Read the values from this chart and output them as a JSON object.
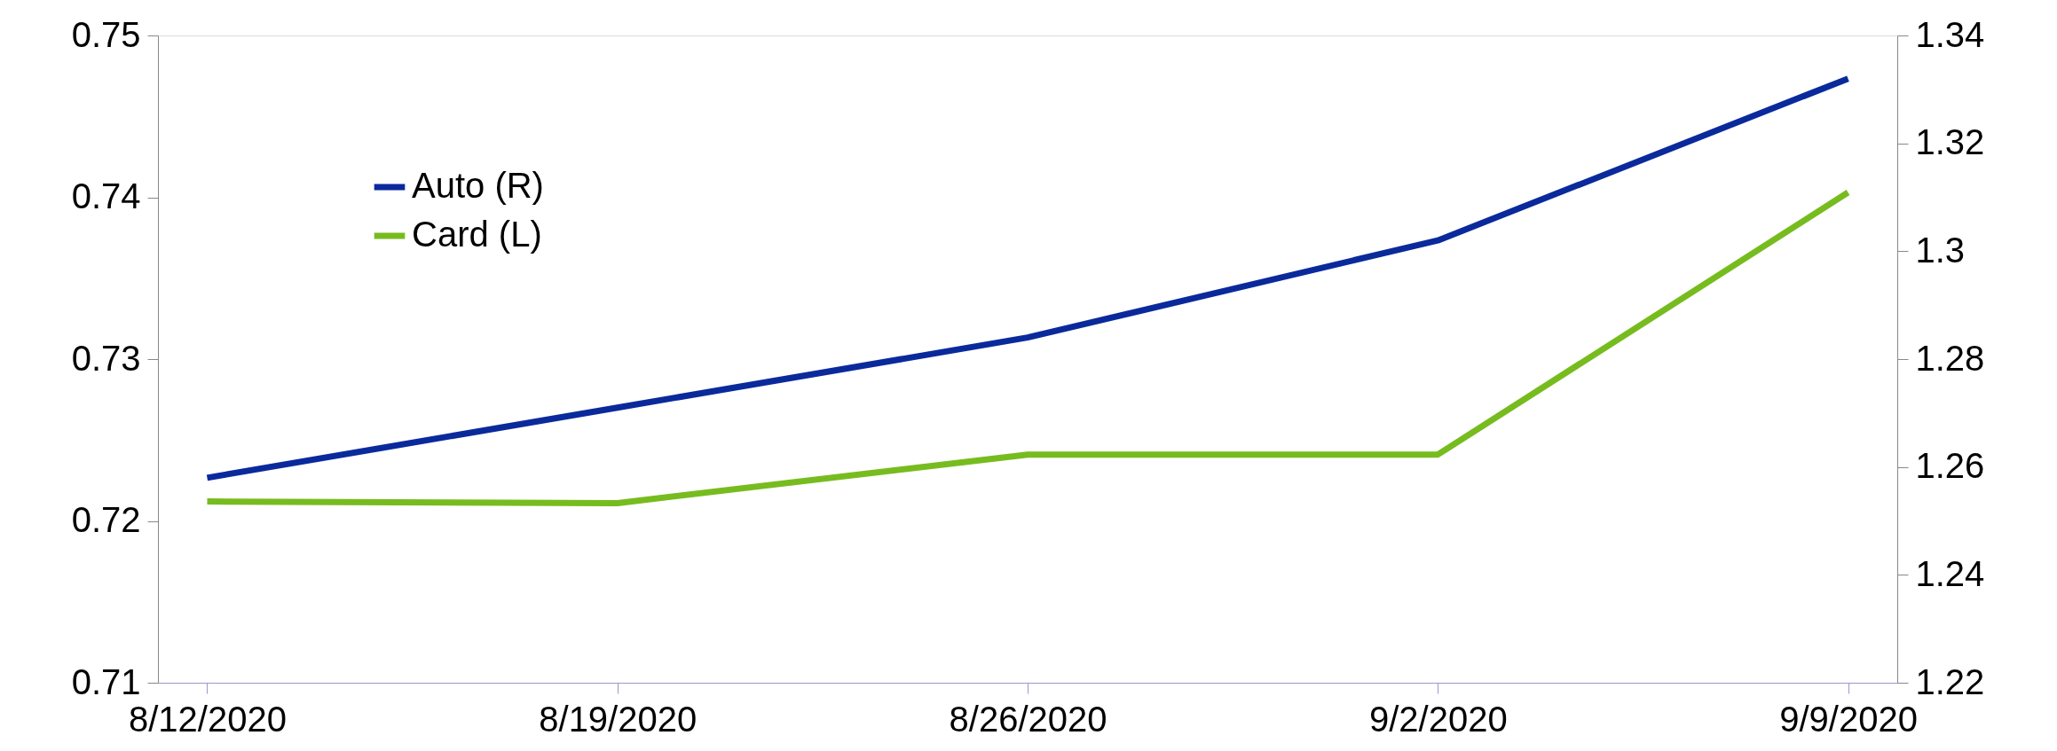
{
  "chart_data": {
    "type": "line",
    "categories": [
      "8/12/2020",
      "8/19/2020",
      "8/26/2020",
      "9/2/2020",
      "9/9/2020"
    ],
    "series": [
      {
        "name": "Auto (R)",
        "color": "#0a2a9c",
        "axis": "y2",
        "values": [
          1.258,
          1.271,
          1.284,
          1.302,
          1.332
        ]
      },
      {
        "name": "Card (L)",
        "color": "#77bc1f",
        "values": [
          0.7212,
          0.7211,
          0.7241,
          0.7241,
          0.7403
        ]
      }
    ],
    "ylim": [
      0.71,
      0.75
    ],
    "yticks": [
      0.71,
      0.72,
      0.73,
      0.74,
      0.75
    ],
    "y2lim": [
      1.22,
      1.34
    ],
    "y2ticks": [
      1.22,
      1.24,
      1.26,
      1.28,
      {
        "value": 1.3,
        "label": "1.3"
      },
      1.32,
      1.34
    ],
    "grid": false,
    "legend": "top left",
    "marker": "none",
    "line_style": "solid"
  }
}
